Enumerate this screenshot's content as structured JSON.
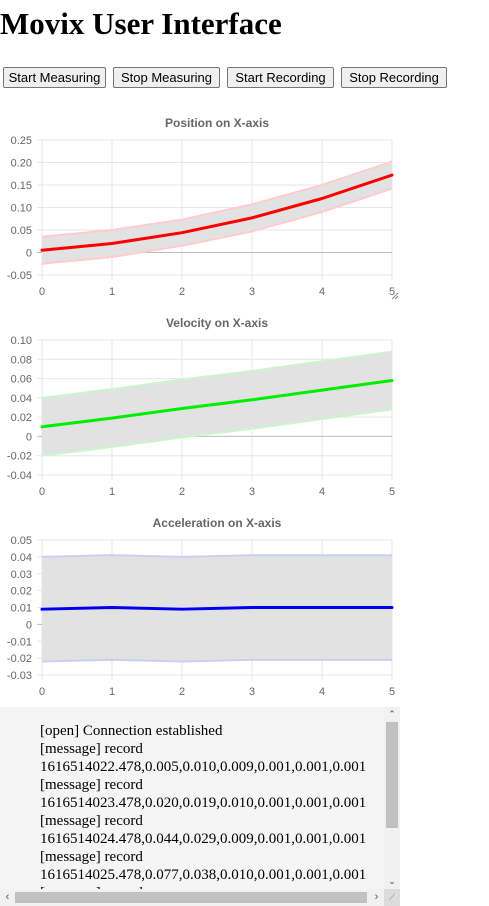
{
  "page": {
    "title": "Movix User Interface"
  },
  "toolbar": {
    "buttons": [
      {
        "name": "start-measuring-button",
        "label": "Start Measuring"
      },
      {
        "name": "stop-measuring-button",
        "label": "Stop Measuring"
      },
      {
        "name": "start-recording-button",
        "label": "Start Recording"
      },
      {
        "name": "stop-recording-button",
        "label": "Stop Recording"
      }
    ]
  },
  "chart_data": [
    {
      "type": "line",
      "title": "Position on X-axis",
      "x": [
        0,
        1,
        2,
        3,
        4,
        5
      ],
      "series": [
        {
          "values": [
            0.005,
            0.02,
            0.044,
            0.077,
            0.12,
            0.172
          ],
          "color": "#ff0000"
        }
      ],
      "band": {
        "upper": [
          0.035,
          0.05,
          0.073,
          0.107,
          0.15,
          0.202
        ],
        "lower": [
          -0.025,
          -0.01,
          0.015,
          0.047,
          0.09,
          0.142
        ],
        "fill": "#e2e2e2",
        "edge_color": "#ffcccc"
      },
      "xlim": [
        0,
        5
      ],
      "ylim": [
        -0.05,
        0.25
      ],
      "yticks": [
        "0.25",
        "0.20",
        "0.15",
        "0.10",
        "0.05",
        "0",
        "-0.05"
      ],
      "xticks": [
        "0",
        "1",
        "2",
        "3",
        "4",
        "5"
      ],
      "grid": true,
      "resize_grip": true
    },
    {
      "type": "line",
      "title": "Velocity on X-axis",
      "x": [
        0,
        1,
        2,
        3,
        4,
        5
      ],
      "series": [
        {
          "values": [
            0.01,
            0.019,
            0.029,
            0.038,
            0.048,
            0.058
          ],
          "color": "#00ee00"
        }
      ],
      "band": {
        "upper": [
          0.04,
          0.049,
          0.059,
          0.068,
          0.078,
          0.088
        ],
        "lower": [
          -0.02,
          -0.011,
          -0.001,
          0.008,
          0.018,
          0.028
        ],
        "fill": "#e2e2e2",
        "edge_color": "#ccf5cc"
      },
      "xlim": [
        0,
        5
      ],
      "ylim": [
        -0.04,
        0.1
      ],
      "yticks": [
        "0.10",
        "0.08",
        "0.06",
        "0.04",
        "0.02",
        "0",
        "-0.02",
        "-0.04"
      ],
      "xticks": [
        "0",
        "1",
        "2",
        "3",
        "4",
        "5"
      ],
      "grid": true,
      "resize_grip": false
    },
    {
      "type": "line",
      "title": "Acceleration on X-axis",
      "x": [
        0,
        1,
        2,
        3,
        4,
        5
      ],
      "series": [
        {
          "values": [
            0.009,
            0.01,
            0.009,
            0.01,
            0.01,
            0.01
          ],
          "color": "#0000ee"
        }
      ],
      "band": {
        "upper": [
          0.04,
          0.041,
          0.04,
          0.041,
          0.041,
          0.041
        ],
        "lower": [
          -0.022,
          -0.021,
          -0.022,
          -0.021,
          -0.021,
          -0.021
        ],
        "fill": "#e2e2e2",
        "edge_color": "#ccccf5"
      },
      "xlim": [
        0,
        5
      ],
      "ylim": [
        -0.03,
        0.05
      ],
      "yticks": [
        "0.05",
        "0.04",
        "0.03",
        "0.02",
        "0.01",
        "0",
        "-0.01",
        "-0.02",
        "-0.03"
      ],
      "xticks": [
        "0",
        "1",
        "2",
        "3",
        "4",
        "5"
      ],
      "grid": true,
      "resize_grip": false
    }
  ],
  "log": {
    "lines": [
      "[open] Connection established",
      "[message] record",
      "1616514022.478,0.005,0.010,0.009,0.001,0.001,0.001",
      "[message] record",
      "1616514023.478,0.020,0.019,0.010,0.001,0.001,0.001",
      "[message] record",
      "1616514024.478,0.044,0.029,0.009,0.001,0.001,0.001",
      "[message] record",
      "1616514025.478,0.077,0.038,0.010,0.001,0.001,0.001",
      "[message] record"
    ]
  },
  "scrollbars": {
    "up_arrow": "⌃",
    "down_arrow": "⌄",
    "left_arrow": "‹",
    "right_arrow": "›",
    "corner_grip": "⟋"
  }
}
